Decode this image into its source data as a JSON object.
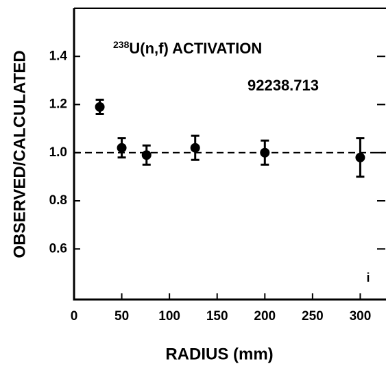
{
  "chart_data": {
    "type": "scatter",
    "xlabel": "RADIUS (mm)",
    "ylabel": "OBSERVED/CALCULATED",
    "annotations": [
      "238",
      "U(n,f) ACTIVATION",
      "92238.713",
      "i"
    ],
    "x": [
      27,
      50,
      76,
      127,
      200,
      300
    ],
    "values": [
      1.19,
      1.02,
      0.99,
      1.02,
      1.0,
      0.98
    ],
    "errors": [
      0.03,
      0.04,
      0.04,
      0.05,
      0.05,
      0.08
    ],
    "color": "#000000",
    "reference_line": {
      "value": 1,
      "style": "dashed"
    },
    "xlim": [
      0,
      327
    ],
    "ylim": [
      0.39,
      1.6
    ],
    "xticks": [
      0,
      50,
      100,
      150,
      200,
      250,
      300
    ],
    "yticks": [
      0.6,
      0.8,
      {
        "value": 1,
        "label": "1.0"
      },
      1.2,
      1.4
    ]
  }
}
